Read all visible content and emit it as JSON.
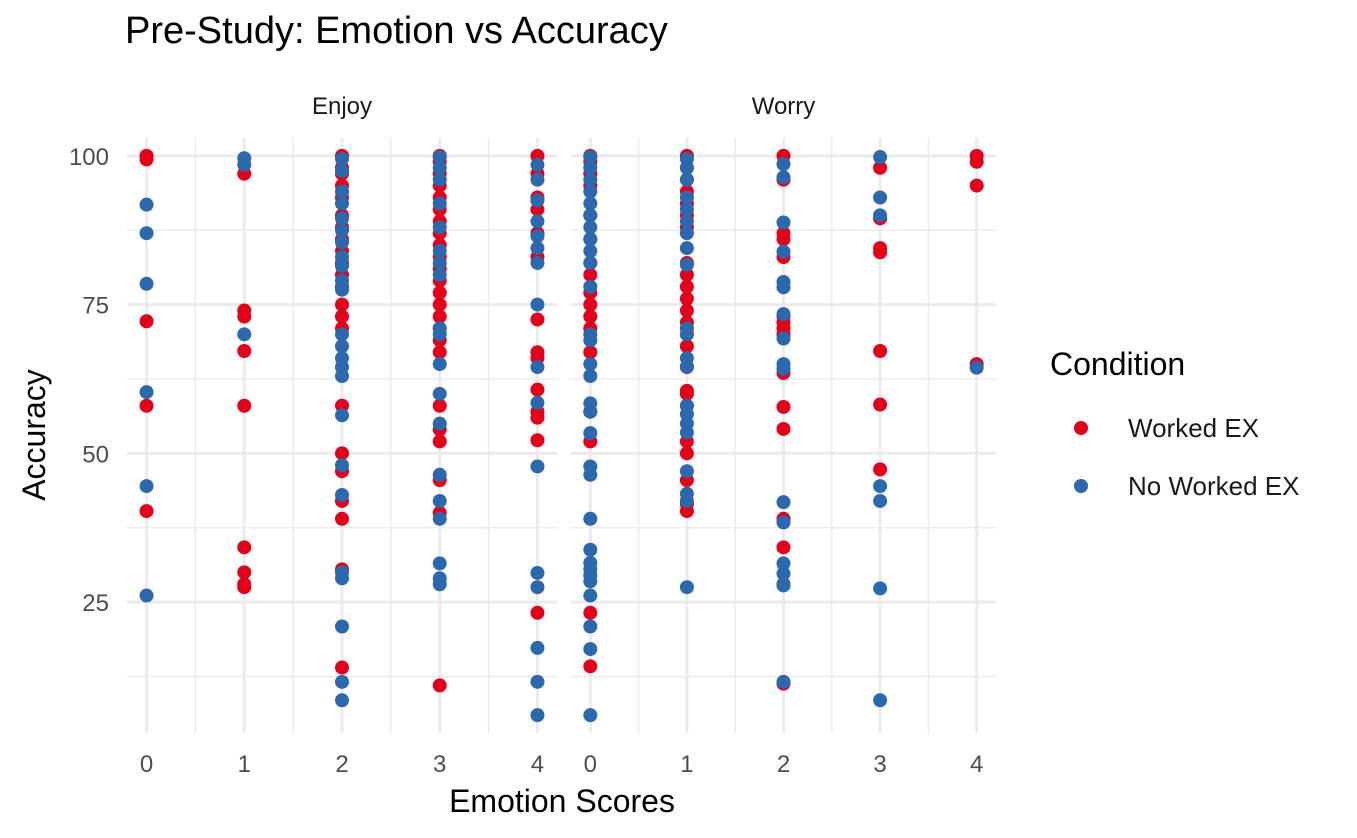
{
  "chart_data": {
    "type": "scatter",
    "title": "Pre-Study: Emotion vs Accuracy",
    "xlabel": "Emotion Scores",
    "ylabel": "Accuracy",
    "facet_by": "emotion",
    "x_ticks": [
      "0",
      "1",
      "2",
      "3",
      "4"
    ],
    "y_ticks": [
      "25",
      "50",
      "75",
      "100"
    ],
    "xlim": [
      -0.2,
      4.2
    ],
    "ylim": [
      3,
      103
    ],
    "grid": true,
    "legend": {
      "title": "Condition",
      "position": "right"
    },
    "series": [
      {
        "name": "Worked EX",
        "color": "#E3001B"
      },
      {
        "name": "No Worked EX",
        "color": "#2C68AE"
      }
    ],
    "facets": [
      {
        "label": "Enjoy",
        "points": {
          "Worked EX": [
            [
              0,
              100
            ],
            [
              0,
              99.4
            ],
            [
              0,
              72.2
            ],
            [
              0,
              58
            ],
            [
              0,
              40.3
            ],
            [
              1,
              97
            ],
            [
              1,
              74
            ],
            [
              1,
              73
            ],
            [
              1,
              67.2
            ],
            [
              1,
              58
            ],
            [
              1,
              34.2
            ],
            [
              1,
              30
            ],
            [
              1,
              28
            ],
            [
              1,
              27.5
            ],
            [
              2,
              100
            ],
            [
              2,
              98
            ],
            [
              2,
              97
            ],
            [
              2,
              95
            ],
            [
              2,
              93
            ],
            [
              2,
              90
            ],
            [
              2,
              88
            ],
            [
              2,
              86
            ],
            [
              2,
              84
            ],
            [
              2,
              82
            ],
            [
              2,
              80
            ],
            [
              2,
              78
            ],
            [
              2,
              75
            ],
            [
              2,
              73
            ],
            [
              2,
              71
            ],
            [
              2,
              58
            ],
            [
              2,
              50
            ],
            [
              2,
              47
            ],
            [
              2,
              42
            ],
            [
              2,
              39
            ],
            [
              2,
              30.5
            ],
            [
              2,
              14
            ],
            [
              3,
              100
            ],
            [
              3,
              99
            ],
            [
              3,
              97
            ],
            [
              3,
              95
            ],
            [
              3,
              93
            ],
            [
              3,
              91
            ],
            [
              3,
              89
            ],
            [
              3,
              87
            ],
            [
              3,
              85
            ],
            [
              3,
              83
            ],
            [
              3,
              81
            ],
            [
              3,
              79
            ],
            [
              3,
              77
            ],
            [
              3,
              75
            ],
            [
              3,
              73
            ],
            [
              3,
              71
            ],
            [
              3,
              69
            ],
            [
              3,
              67
            ],
            [
              3,
              58
            ],
            [
              3,
              54
            ],
            [
              3,
              52
            ],
            [
              3,
              45.5
            ],
            [
              3,
              40
            ],
            [
              3,
              11
            ],
            [
              4,
              100
            ],
            [
              4,
              97
            ],
            [
              4,
              93
            ],
            [
              4,
              91
            ],
            [
              4,
              87
            ],
            [
              4,
              83
            ],
            [
              4,
              72.5
            ],
            [
              4,
              67
            ],
            [
              4,
              66
            ],
            [
              4,
              60.7
            ],
            [
              4,
              57
            ],
            [
              4,
              56
            ],
            [
              4,
              52.2
            ],
            [
              4,
              23.2
            ]
          ],
          "No Worked EX": [
            [
              0,
              91.8
            ],
            [
              0,
              87
            ],
            [
              0,
              78.5
            ],
            [
              0,
              60.3
            ],
            [
              0,
              44.5
            ],
            [
              0,
              26.1
            ],
            [
              1,
              99.6
            ],
            [
              1,
              98.5
            ],
            [
              1,
              70
            ],
            [
              2,
              99.5
            ],
            [
              2,
              97.5
            ],
            [
              2,
              94
            ],
            [
              2,
              92
            ],
            [
              2,
              89.5
            ],
            [
              2,
              87.5
            ],
            [
              2,
              85.5
            ],
            [
              2,
              83
            ],
            [
              2,
              81.5
            ],
            [
              2,
              79
            ],
            [
              2,
              77.5
            ],
            [
              2,
              70
            ],
            [
              2,
              68
            ],
            [
              2,
              66
            ],
            [
              2,
              64.5
            ],
            [
              2,
              63
            ],
            [
              2,
              56.4
            ],
            [
              2,
              48
            ],
            [
              2,
              43
            ],
            [
              2,
              30
            ],
            [
              2,
              29
            ],
            [
              2,
              20.9
            ],
            [
              2,
              11.6
            ],
            [
              2,
              8.5
            ],
            [
              3,
              99.8
            ],
            [
              3,
              98
            ],
            [
              3,
              96
            ],
            [
              3,
              92
            ],
            [
              3,
              88
            ],
            [
              3,
              84
            ],
            [
              3,
              82
            ],
            [
              3,
              80
            ],
            [
              3,
              71
            ],
            [
              3,
              70
            ],
            [
              3,
              65
            ],
            [
              3,
              60
            ],
            [
              3,
              55
            ],
            [
              3,
              46.4
            ],
            [
              3,
              42
            ],
            [
              3,
              39
            ],
            [
              3,
              31.5
            ],
            [
              3,
              29
            ],
            [
              3,
              28
            ],
            [
              4,
              98.5
            ],
            [
              4,
              96
            ],
            [
              4,
              92.5
            ],
            [
              4,
              89
            ],
            [
              4,
              86.5
            ],
            [
              4,
              84.5
            ],
            [
              4,
              82
            ],
            [
              4,
              75
            ],
            [
              4,
              64.5
            ],
            [
              4,
              58.5
            ],
            [
              4,
              47.8
            ],
            [
              4,
              29.9
            ],
            [
              4,
              27.5
            ],
            [
              4,
              17.3
            ],
            [
              4,
              11.6
            ],
            [
              4,
              6
            ]
          ]
        }
      },
      {
        "label": "Worry",
        "points": {
          "Worked EX": [
            [
              0,
              100
            ],
            [
              0,
              99
            ],
            [
              0,
              97
            ],
            [
              0,
              95
            ],
            [
              0,
              90
            ],
            [
              0,
              86
            ],
            [
              0,
              82
            ],
            [
              0,
              80
            ],
            [
              0,
              77
            ],
            [
              0,
              75
            ],
            [
              0,
              73
            ],
            [
              0,
              71
            ],
            [
              0,
              67
            ],
            [
              0,
              57
            ],
            [
              0,
              52
            ],
            [
              0,
              23.2
            ],
            [
              0,
              14.2
            ],
            [
              1,
              100
            ],
            [
              1,
              98
            ],
            [
              1,
              96
            ],
            [
              1,
              94
            ],
            [
              1,
              92
            ],
            [
              1,
              90
            ],
            [
              1,
              88
            ],
            [
              1,
              82
            ],
            [
              1,
              80
            ],
            [
              1,
              78
            ],
            [
              1,
              76
            ],
            [
              1,
              74
            ],
            [
              1,
              72
            ],
            [
              1,
              70
            ],
            [
              1,
              68
            ],
            [
              1,
              64.5
            ],
            [
              1,
              60.5
            ],
            [
              1,
              60
            ],
            [
              1,
              58
            ],
            [
              1,
              52
            ],
            [
              1,
              50
            ],
            [
              1,
              45.5
            ],
            [
              1,
              41.5
            ],
            [
              1,
              40.3
            ],
            [
              2,
              100
            ],
            [
              2,
              96
            ],
            [
              2,
              87
            ],
            [
              2,
              86
            ],
            [
              2,
              83
            ],
            [
              2,
              73
            ],
            [
              2,
              72
            ],
            [
              2,
              71
            ],
            [
              2,
              70
            ],
            [
              2,
              63.5
            ],
            [
              2,
              57.8
            ],
            [
              2,
              54.1
            ],
            [
              2,
              39
            ],
            [
              2,
              34.2
            ],
            [
              2,
              28
            ],
            [
              2,
              11.3
            ],
            [
              3,
              98
            ],
            [
              3,
              89.5
            ],
            [
              3,
              84.5
            ],
            [
              3,
              83.8
            ],
            [
              3,
              67.2
            ],
            [
              3,
              58.2
            ],
            [
              3,
              47.3
            ],
            [
              4,
              100
            ],
            [
              4,
              99
            ],
            [
              4,
              95
            ],
            [
              4,
              65
            ]
          ],
          "No Worked EX": [
            [
              0,
              99.8
            ],
            [
              0,
              98
            ],
            [
              0,
              96
            ],
            [
              0,
              94
            ],
            [
              0,
              92
            ],
            [
              0,
              90
            ],
            [
              0,
              88
            ],
            [
              0,
              86
            ],
            [
              0,
              84
            ],
            [
              0,
              82
            ],
            [
              0,
              78
            ],
            [
              0,
              70
            ],
            [
              0,
              69
            ],
            [
              0,
              65
            ],
            [
              0,
              63
            ],
            [
              0,
              58.4
            ],
            [
              0,
              57
            ],
            [
              0,
              53.4
            ],
            [
              0,
              47.8
            ],
            [
              0,
              46.4
            ],
            [
              0,
              39
            ],
            [
              0,
              33.8
            ],
            [
              0,
              31.6
            ],
            [
              0,
              30.5
            ],
            [
              0,
              29.5
            ],
            [
              0,
              28.5
            ],
            [
              0,
              26.1
            ],
            [
              0,
              20.9
            ],
            [
              0,
              17.1
            ],
            [
              0,
              6
            ],
            [
              1,
              99.5
            ],
            [
              1,
              98
            ],
            [
              1,
              96
            ],
            [
              1,
              93
            ],
            [
              1,
              91
            ],
            [
              1,
              89
            ],
            [
              1,
              87
            ],
            [
              1,
              84.5
            ],
            [
              1,
              81.7
            ],
            [
              1,
              71
            ],
            [
              1,
              70
            ],
            [
              1,
              66
            ],
            [
              1,
              64.6
            ],
            [
              1,
              58
            ],
            [
              1,
              56.6
            ],
            [
              1,
              55
            ],
            [
              1,
              53.5
            ],
            [
              1,
              47
            ],
            [
              1,
              43.2
            ],
            [
              1,
              42
            ],
            [
              1,
              27.5
            ],
            [
              2,
              98.6
            ],
            [
              2,
              96.4
            ],
            [
              2,
              88.8
            ],
            [
              2,
              83.9
            ],
            [
              2,
              78.8
            ],
            [
              2,
              77.9
            ],
            [
              2,
              73.4
            ],
            [
              2,
              69.3
            ],
            [
              2,
              65
            ],
            [
              2,
              64.2
            ],
            [
              2,
              41.8
            ],
            [
              2,
              38.4
            ],
            [
              2,
              31.5
            ],
            [
              2,
              29.8
            ],
            [
              2,
              27.8
            ],
            [
              2,
              11.6
            ],
            [
              3,
              99.8
            ],
            [
              3,
              93
            ],
            [
              3,
              90
            ],
            [
              3,
              44.5
            ],
            [
              3,
              42
            ],
            [
              3,
              27.3
            ],
            [
              3,
              8.5
            ],
            [
              4,
              64.4
            ]
          ]
        }
      }
    ]
  }
}
